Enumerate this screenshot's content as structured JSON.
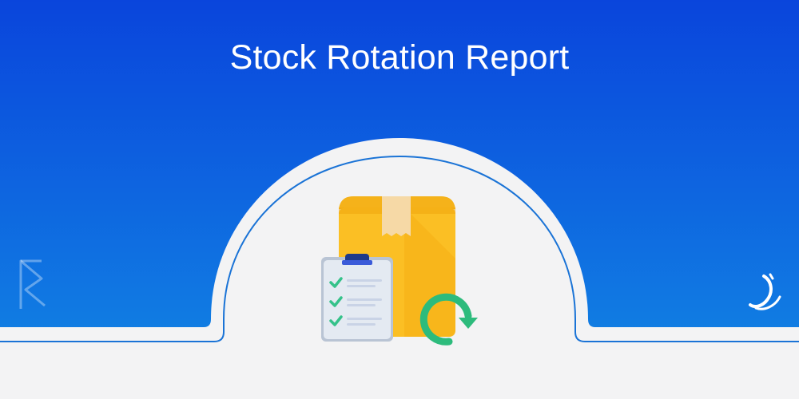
{
  "banner": {
    "title": "Stock Rotation Report"
  },
  "colors": {
    "gradient_top": "#0a45dc",
    "gradient_bottom": "#1288e4",
    "panel": "#f3f3f4",
    "outline": "#1a73d6",
    "box_yellow": "#fbbf24",
    "box_dark": "#f1a80f",
    "box_tape": "#f6d9a6",
    "clipboard": "#dfe6ef",
    "clip": "#1e3a8a",
    "check_green": "#35c28a",
    "arrow_green": "#2dbb7c"
  },
  "icons": {
    "main": "stock-box-icon",
    "checklist": "clipboard-checklist-icon",
    "rotation": "rotation-arrow-icon",
    "brand_left": "brand-mark-left-icon",
    "brand_right": "brand-mark-right-icon"
  }
}
